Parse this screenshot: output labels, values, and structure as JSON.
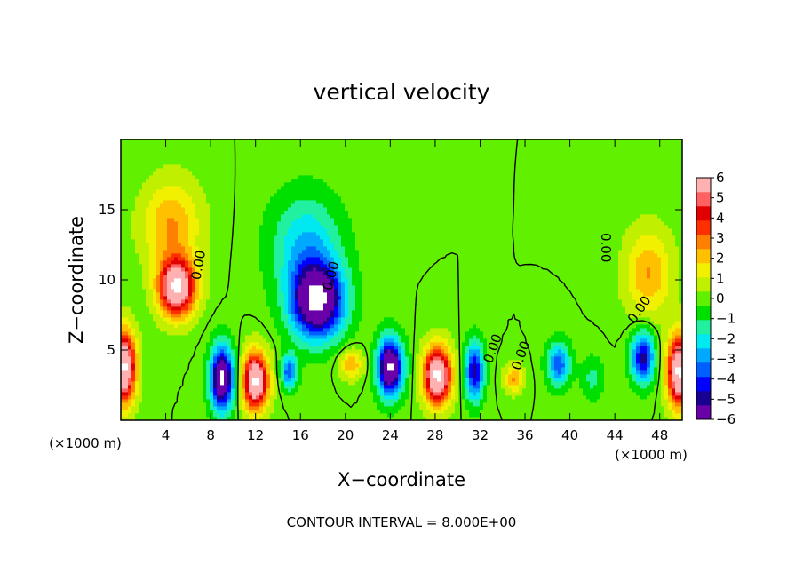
{
  "chart_data": {
    "type": "heatmap",
    "title": "vertical velocity",
    "xlabel": "X−coordinate",
    "ylabel": "Z−coordinate",
    "x_unit_note_left": "(×1000 m)",
    "x_unit_note_right": "(×1000 m)",
    "xlim": [
      0,
      50
    ],
    "ylim": [
      0,
      20
    ],
    "x_ticks": [
      4,
      8,
      12,
      16,
      20,
      24,
      28,
      32,
      36,
      40,
      44,
      48
    ],
    "y_ticks": [
      5,
      10,
      15
    ],
    "footer": "CONTOUR INTERVAL = 8.000E+00",
    "contour_labels": [
      "0.00",
      "0.00",
      "0.00",
      "0.00",
      "0.00",
      "0.00"
    ],
    "colorbar": {
      "min": -6,
      "max": 6,
      "ticks": [
        6,
        5,
        4,
        3,
        2,
        1,
        0,
        -1,
        -2,
        -3,
        -4,
        -5,
        -6
      ],
      "tick_labels": [
        "6",
        "5",
        "4",
        "3",
        "2",
        "1",
        "0",
        "−1",
        "−2",
        "−3",
        "−4",
        "−5",
        "−6"
      ],
      "colors": [
        "#6a00a8",
        "#1a0090",
        "#0000ff",
        "#0060ff",
        "#00a8ff",
        "#00e8f0",
        "#20f0a0",
        "#00e000",
        "#60f000",
        "#c0f000",
        "#f0f000",
        "#ffc000",
        "#ff8000",
        "#ff3000",
        "#e00000",
        "#ff6060",
        "#ffb0b0"
      ]
    },
    "features": [
      {
        "x": 5.0,
        "z": 9.5,
        "value": 6,
        "sx": 1.6,
        "sz": 2.0
      },
      {
        "x": 4.5,
        "z": 14.0,
        "value": 2,
        "sx": 2.5,
        "sz": 3.0
      },
      {
        "x": 17.5,
        "z": 8.5,
        "value": -6,
        "sx": 2.3,
        "sz": 2.6
      },
      {
        "x": 16.5,
        "z": 12.5,
        "value": -2,
        "sx": 3.0,
        "sz": 3.5
      },
      {
        "x": 12.0,
        "z": 2.8,
        "value": 6,
        "sx": 1.1,
        "sz": 2.0
      },
      {
        "x": 9.0,
        "z": 3.0,
        "value": -6,
        "sx": 1.0,
        "sz": 2.2
      },
      {
        "x": 24.0,
        "z": 3.8,
        "value": -6,
        "sx": 1.1,
        "sz": 2.0
      },
      {
        "x": 28.2,
        "z": 3.2,
        "value": 6,
        "sx": 1.2,
        "sz": 2.0
      },
      {
        "x": 0.3,
        "z": 3.8,
        "value": 6,
        "sx": 1.0,
        "sz": 2.5
      },
      {
        "x": 49.7,
        "z": 3.5,
        "value": 6,
        "sx": 1.0,
        "sz": 2.5
      },
      {
        "x": 46.5,
        "z": 4.5,
        "value": -4,
        "sx": 1.0,
        "sz": 1.8
      },
      {
        "x": 31.5,
        "z": 3.5,
        "value": -4,
        "sx": 0.8,
        "sz": 2.0
      },
      {
        "x": 39.0,
        "z": 4.0,
        "value": -3,
        "sx": 1.0,
        "sz": 1.5
      },
      {
        "x": 47.0,
        "z": 10.5,
        "value": 2,
        "sx": 2.0,
        "sz": 3.0
      },
      {
        "x": 20.5,
        "z": 4.0,
        "value": 2,
        "sx": 1.0,
        "sz": 1.0
      },
      {
        "x": 35.0,
        "z": 3.0,
        "value": 2,
        "sx": 0.8,
        "sz": 1.0
      },
      {
        "x": 15.0,
        "z": 3.5,
        "value": -3,
        "sx": 0.7,
        "sz": 1.2
      },
      {
        "x": 42.0,
        "z": 3.0,
        "value": -1,
        "sx": 1.0,
        "sz": 1.5
      }
    ]
  }
}
